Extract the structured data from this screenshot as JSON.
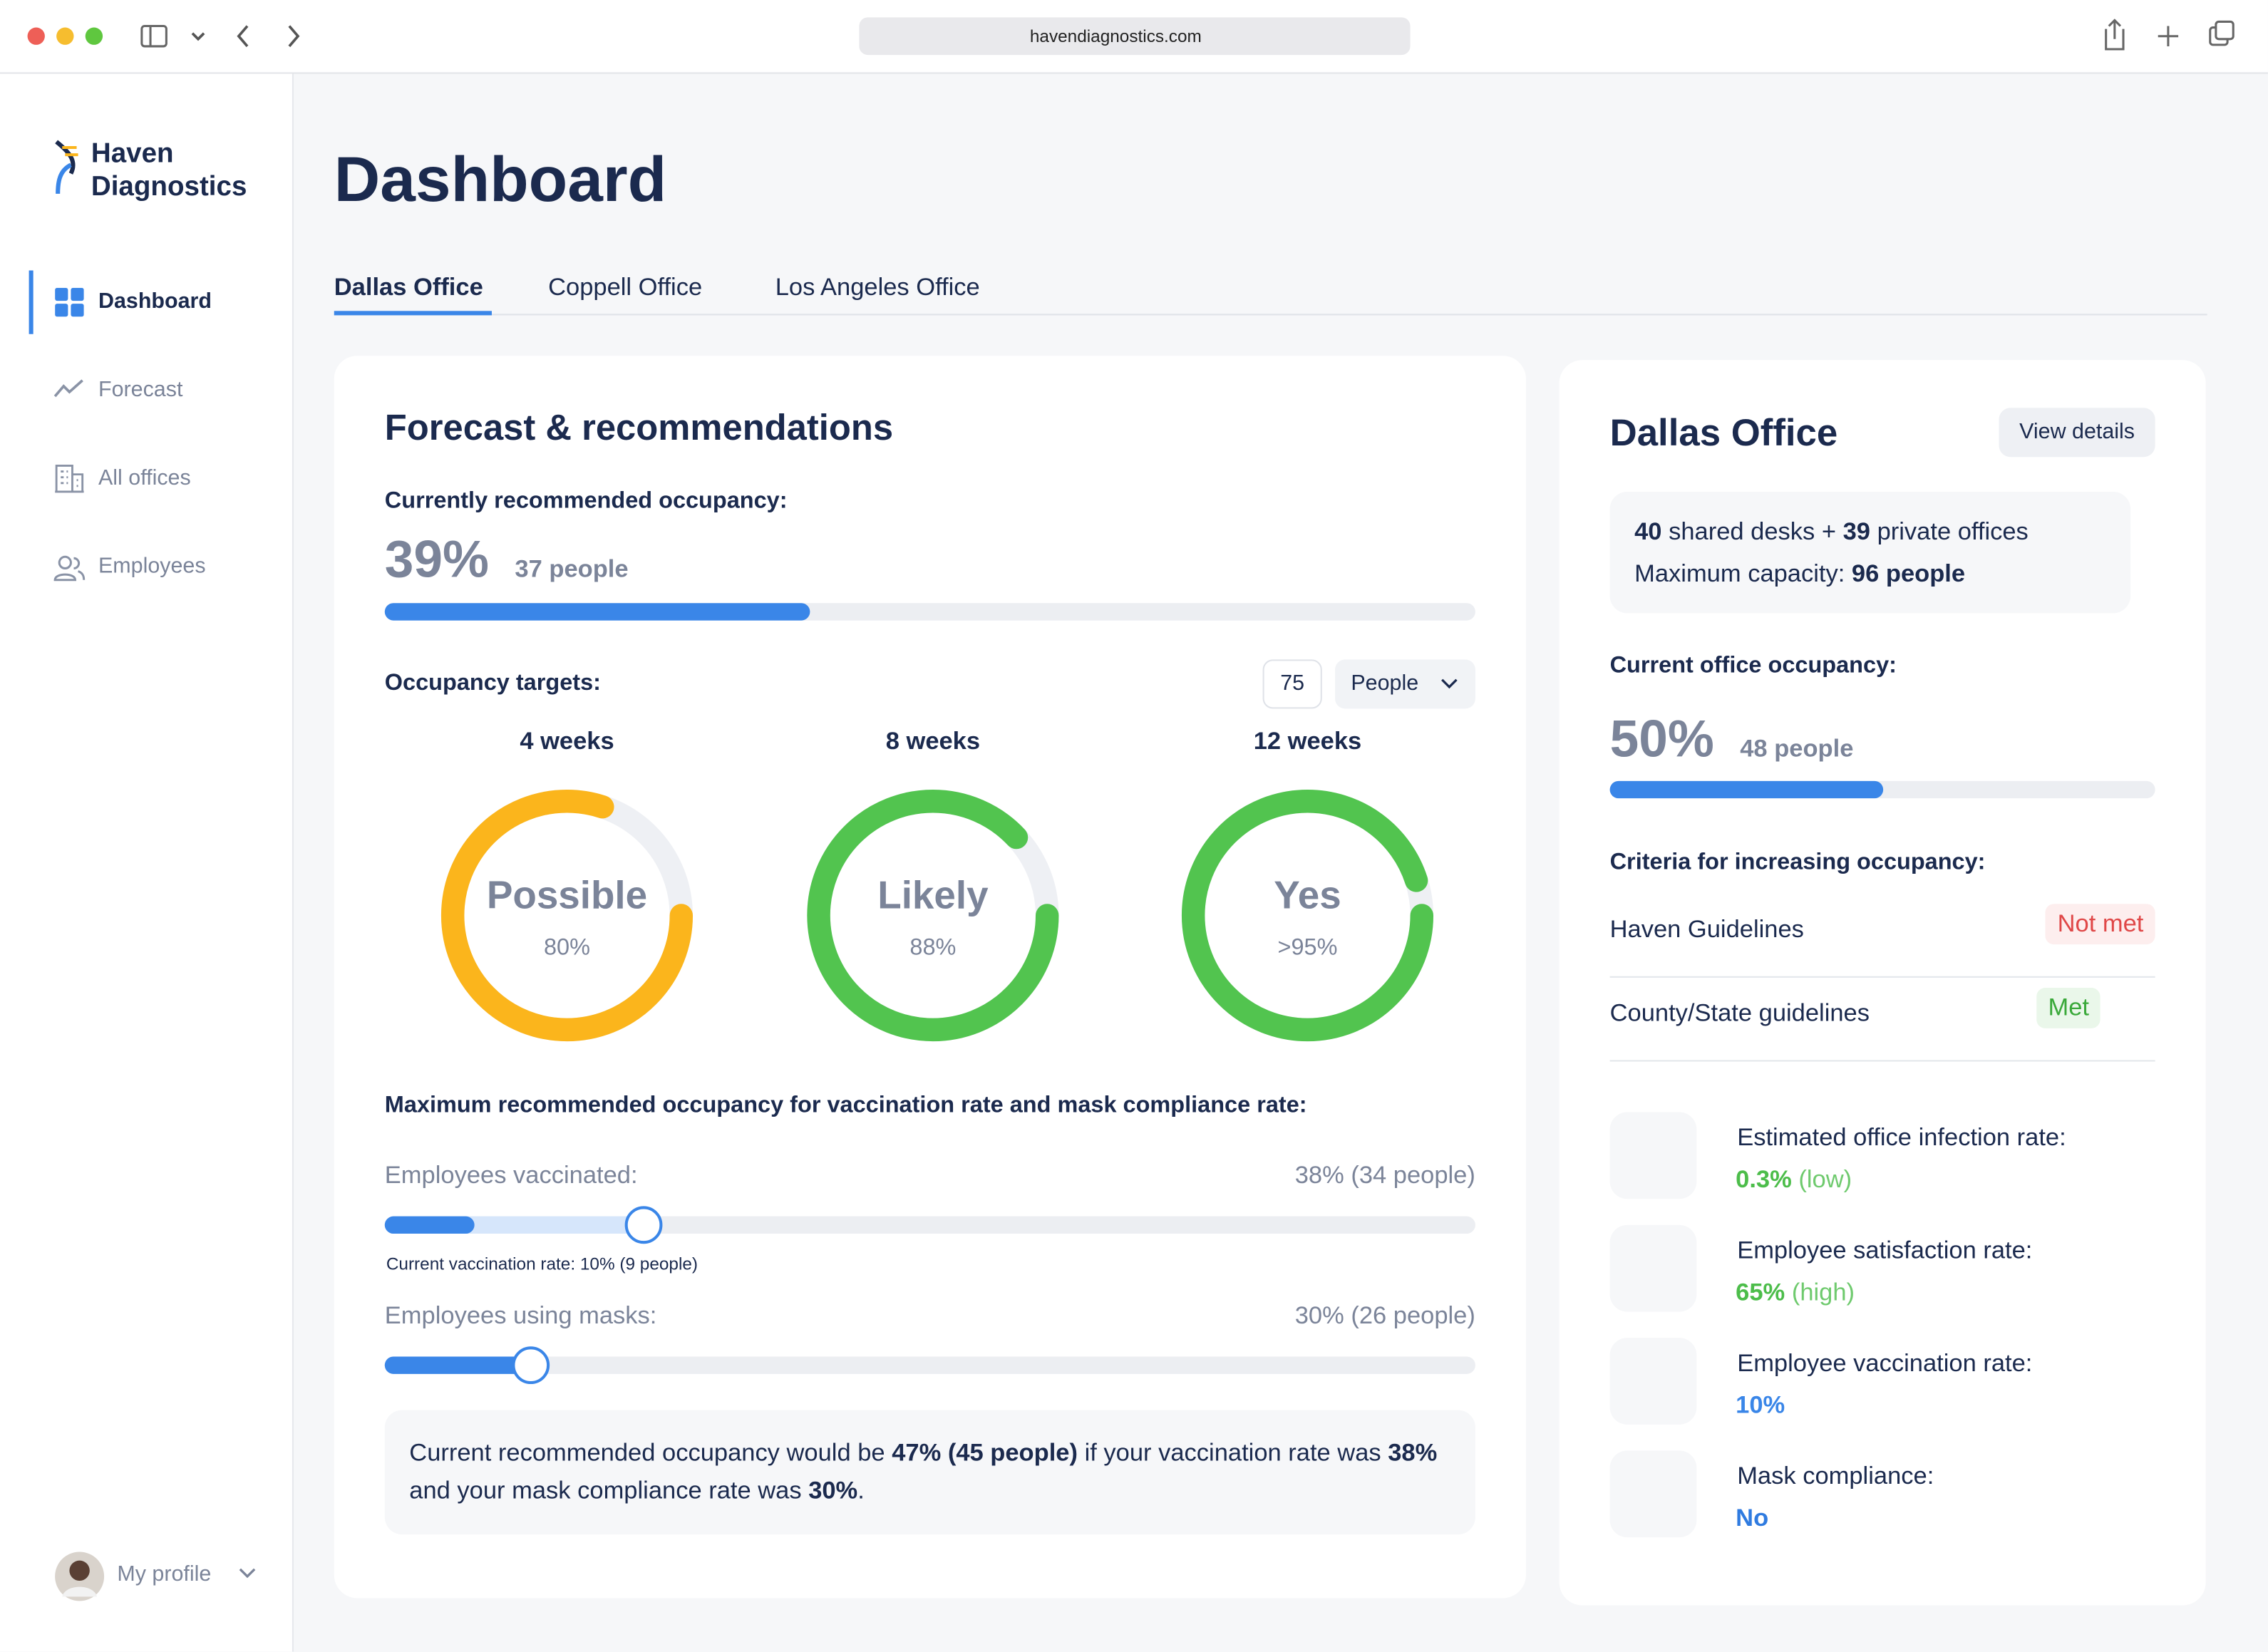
{
  "browser": {
    "url": "havendiagnostics.com"
  },
  "sidebar": {
    "brand": [
      "Haven",
      "Diagnostics"
    ],
    "nav": [
      "Dashboard",
      "Forecast",
      "All offices",
      "Employees"
    ],
    "profile": "My profile"
  },
  "header": {
    "title": "Dashboard",
    "tabs": [
      "Dallas Office",
      "Coppell Office",
      "Los Angeles Office"
    ]
  },
  "forecast": {
    "title": "Forecast & recommendations",
    "recommended_label": "Currently recommended occupancy:",
    "recommended": {
      "value": 39,
      "label": "39%"
    },
    "recommended_people": "37 people",
    "targets_label": "Occupancy targets:",
    "target_input": "75",
    "target_unit": "People",
    "targets": [
      {
        "period": "4 weeks",
        "status": "Possible",
        "value": 80,
        "label": "80%",
        "color": "#fbb51c"
      },
      {
        "period": "8 weeks",
        "status": "Likely",
        "value": 88,
        "label": "88%",
        "color": "#52c44f"
      },
      {
        "period": "12 weeks",
        "status": "Yes",
        "value": 95,
        "label": ">95%",
        "color": "#52c44f"
      }
    ],
    "max_title": "Maximum recommended occupancy for vaccination rate and mask compliance rate:",
    "vaccinated_label": "Employees vaccinated:",
    "vaccinated_value": "38% (34 people)",
    "current_vaccination": "Current vaccination rate: 10% (9 people)",
    "masks_label": "Employees using masks:",
    "masks_value": "30% (26 people)",
    "summary": [
      {
        "text": "Current recommended occupancy would be "
      },
      {
        "text": "47% (45 people)",
        "bold": true
      },
      {
        "text": " if your vaccination rate was "
      },
      {
        "text": "38%",
        "bold": true
      },
      {
        "text": " and your mask compliance rate was "
      },
      {
        "text": "30%",
        "bold": true
      },
      {
        "text": "."
      }
    ]
  },
  "office": {
    "title": "Dallas Office",
    "button": "View details",
    "capacity": [
      [
        {
          "text": "40",
          "bold": true
        },
        {
          "text": " shared desks + "
        },
        {
          "text": "39",
          "bold": true
        },
        {
          "text": " private offices"
        }
      ],
      [
        {
          "text": "Maximum capacity: "
        },
        {
          "text": "96 people",
          "bold": true
        }
      ]
    ],
    "occupancy_label": "Current office occupancy:",
    "occupancy": {
      "value": 50,
      "label": "50%"
    },
    "occupancy_people": "48 people",
    "criteria_title": "Criteria for increasing occupancy:",
    "criteria": [
      {
        "name": "Haven Guidelines",
        "status": "Not met",
        "met": false
      },
      {
        "name": "County/State guidelines",
        "status": "Met",
        "met": true
      }
    ],
    "stats": [
      {
        "label": "Estimated office infection rate:",
        "value": "0.3%",
        "note": "(low)",
        "color": "#4cbd4a"
      },
      {
        "label": "Employee satisfaction rate:",
        "value": "65%",
        "note": "(high)",
        "color": "#4cbd4a"
      },
      {
        "label": "Employee vaccination rate:",
        "value": "10%",
        "color": "#3a86e8"
      },
      {
        "label": "Mask compliance:",
        "value": "No",
        "color": "#2f7be0"
      }
    ]
  }
}
